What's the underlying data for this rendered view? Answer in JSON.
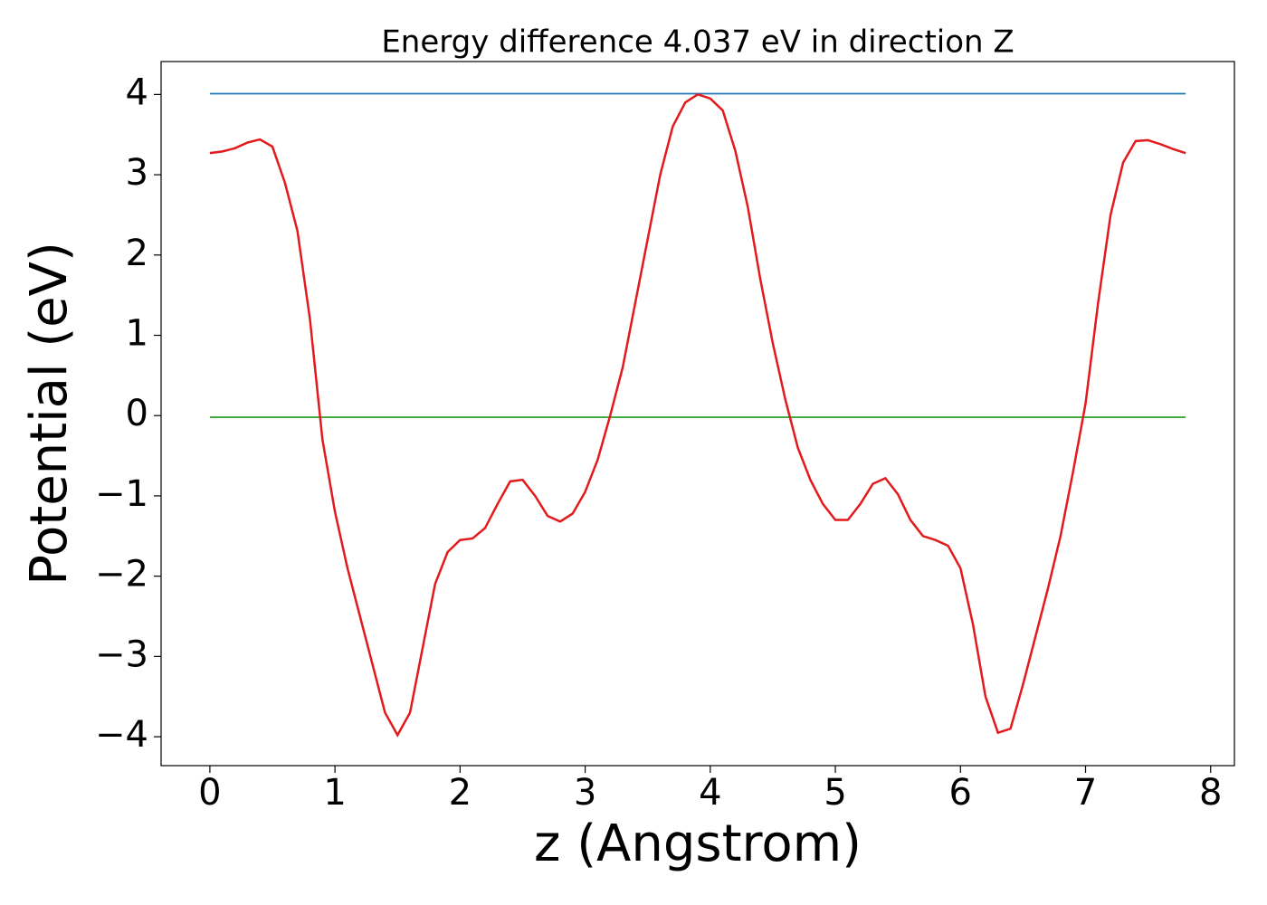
{
  "chart_data": {
    "type": "line",
    "title": "Energy difference 4.037 eV in direction Z",
    "xlabel": "z (Angstrom)",
    "ylabel": "Potential (eV)",
    "xlim": [
      -0.39,
      8.19
    ],
    "ylim": [
      -4.36,
      4.41
    ],
    "xticks": [
      0,
      1,
      2,
      3,
      4,
      5,
      6,
      7,
      8
    ],
    "yticks": [
      {
        "value": -4,
        "label": "−4"
      },
      {
        "value": -3,
        "label": "−3"
      },
      {
        "value": -2,
        "label": "−2"
      },
      {
        "value": -1,
        "label": "−1"
      },
      0,
      1,
      2,
      3,
      4
    ],
    "grid": false,
    "series": [
      {
        "color": "#1f77b4",
        "x": [
          0,
          7.8
        ],
        "values": [
          4.01,
          4.01
        ]
      },
      {
        "color": "#2ca02c",
        "x": [
          0,
          7.8
        ],
        "values": [
          -0.02,
          -0.02
        ]
      },
      {
        "color": "#e31a1c",
        "x": [
          0,
          0.1,
          0.2,
          0.3,
          0.4,
          0.5,
          0.6,
          0.7,
          0.8,
          0.9,
          1.0,
          1.1,
          1.2,
          1.3,
          1.4,
          1.5,
          1.6,
          1.7,
          1.8,
          1.9,
          2.0,
          2.1,
          2.2,
          2.3,
          2.4,
          2.5,
          2.6,
          2.7,
          2.8,
          2.9,
          3.0,
          3.1,
          3.2,
          3.3,
          3.4,
          3.5,
          3.6,
          3.7,
          3.8,
          3.9,
          4.0,
          4.1,
          4.2,
          4.3,
          4.4,
          4.5,
          4.6,
          4.7,
          4.8,
          4.9,
          5.0,
          5.1,
          5.2,
          5.3,
          5.4,
          5.5,
          5.6,
          5.7,
          5.8,
          5.9,
          6.0,
          6.1,
          6.2,
          6.3,
          6.4,
          6.5,
          6.6,
          6.7,
          6.8,
          6.9,
          7.0,
          7.1,
          7.2,
          7.3,
          7.4,
          7.5,
          7.6,
          7.7,
          7.8
        ],
        "values": [
          3.27,
          3.29,
          3.33,
          3.4,
          3.44,
          3.35,
          2.9,
          2.3,
          1.2,
          -0.3,
          -1.2,
          -1.9,
          -2.5,
          -3.1,
          -3.7,
          -3.98,
          -3.7,
          -2.9,
          -2.1,
          -1.7,
          -1.55,
          -1.53,
          -1.4,
          -1.1,
          -0.82,
          -0.8,
          -1.0,
          -1.25,
          -1.32,
          -1.22,
          -0.95,
          -0.55,
          0.0,
          0.6,
          1.4,
          2.2,
          3.0,
          3.6,
          3.9,
          4.0,
          3.95,
          3.8,
          3.3,
          2.6,
          1.7,
          0.9,
          0.2,
          -0.4,
          -0.8,
          -1.1,
          -1.3,
          -1.3,
          -1.1,
          -0.85,
          -0.78,
          -0.98,
          -1.3,
          -1.5,
          -1.55,
          -1.62,
          -1.9,
          -2.6,
          -3.5,
          -3.95,
          -3.9,
          -3.35,
          -2.75,
          -2.15,
          -1.5,
          -0.7,
          0.15,
          1.4,
          2.5,
          3.15,
          3.42,
          3.43,
          3.38,
          3.32,
          3.27
        ]
      }
    ]
  }
}
